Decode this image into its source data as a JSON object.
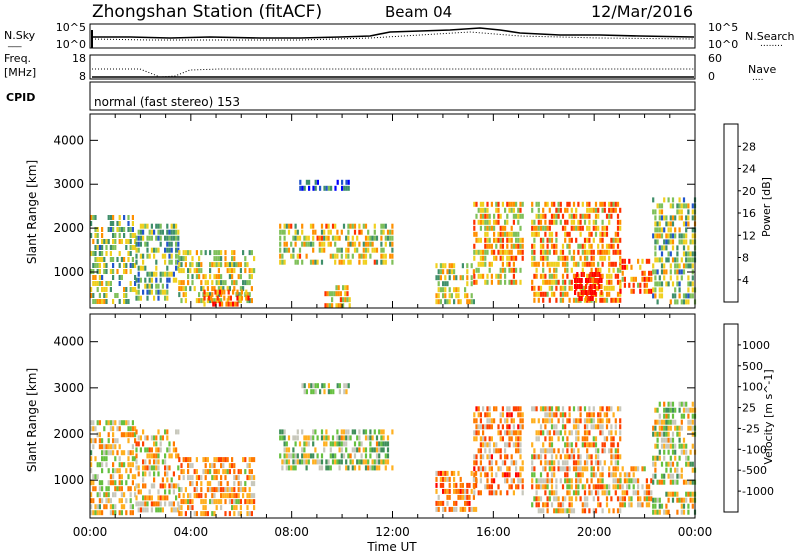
{
  "header": {
    "station": "Zhongshan Station (fitACF)",
    "beam": "Beam 04",
    "date": "12/Mar/2016"
  },
  "summary": {
    "nsky_label": "N.Sky",
    "nsearch_label": "N.Search",
    "freq_label_1": "Freq.",
    "freq_label_2": "[MHz]",
    "nave_label": "Nave",
    "cpid_label": "CPID",
    "cpid_text": "normal (fast stereo) 153",
    "count_ticks": [
      "10^5",
      "10^0"
    ],
    "freq_ticks": [
      "18",
      "8"
    ],
    "nave_ticks": [
      "60",
      "0"
    ],
    "nsky_dashes": "___",
    "nsearch_dots": "........",
    "nave_dots": "...."
  },
  "chart_data": [
    {
      "type": "heatmap",
      "panel": "power",
      "ylabel": "Slant Range [km]",
      "xlabel": "",
      "yticks": [
        1000,
        2000,
        3000,
        4000
      ],
      "ylim": [
        180,
        4600
      ],
      "xlim": [
        0,
        24
      ],
      "colorbar": {
        "label": "Power [dB]",
        "ticks": [
          "4",
          "8",
          "12",
          "16",
          "20",
          "24",
          "28"
        ],
        "colors": [
          "#0000ff",
          "#2255cc",
          "#3f8f6a",
          "#7fc05a",
          "#f0d020",
          "#ff9000",
          "#ff3000",
          "#ff0000"
        ]
      },
      "regions": [
        {
          "t0": 0.0,
          "t1": 1.8,
          "r0": 300,
          "r1": 2300,
          "level": 0.45
        },
        {
          "t0": 1.8,
          "t1": 3.5,
          "r0": 400,
          "r1": 2100,
          "level": 0.4
        },
        {
          "t0": 3.5,
          "t1": 6.5,
          "r0": 300,
          "r1": 1500,
          "level": 0.5
        },
        {
          "t0": 4.5,
          "t1": 6.5,
          "r0": 250,
          "r1": 600,
          "level": 0.8
        },
        {
          "t0": 7.5,
          "t1": 12.0,
          "r0": 1200,
          "r1": 2100,
          "level": 0.55
        },
        {
          "t0": 8.3,
          "t1": 10.3,
          "r0": 2850,
          "r1": 3100,
          "level": 0.2
        },
        {
          "t0": 9.3,
          "t1": 10.3,
          "r0": 250,
          "r1": 700,
          "level": 0.6
        },
        {
          "t0": 13.7,
          "t1": 15.3,
          "r0": 350,
          "r1": 1200,
          "level": 0.5
        },
        {
          "t0": 15.2,
          "t1": 17.2,
          "r0": 700,
          "r1": 2600,
          "level": 0.6
        },
        {
          "t0": 17.5,
          "t1": 21.0,
          "r0": 300,
          "r1": 2600,
          "level": 0.65
        },
        {
          "t0": 19.2,
          "t1": 20.3,
          "r0": 400,
          "r1": 1000,
          "level": 0.95
        },
        {
          "t0": 21.0,
          "t1": 22.3,
          "r0": 500,
          "r1": 1300,
          "level": 0.7
        },
        {
          "t0": 22.3,
          "t1": 24.0,
          "r0": 300,
          "r1": 2700,
          "level": 0.45
        }
      ]
    },
    {
      "type": "heatmap",
      "panel": "velocity",
      "ylabel": "Slant Range [km]",
      "xlabel": "Time UT",
      "xticks": [
        "00:00",
        "04:00",
        "08:00",
        "12:00",
        "16:00",
        "20:00",
        "00:00"
      ],
      "yticks": [
        1000,
        2000,
        3000,
        4000
      ],
      "ylim": [
        180,
        4600
      ],
      "xlim": [
        0,
        24
      ],
      "colorbar": {
        "label": "Velocity [m s^-1]",
        "ticks": [
          "1000",
          "500",
          "100",
          "25",
          "-25",
          "-100",
          "-500",
          "-1000"
        ],
        "colors": [
          "#1a3fa8",
          "#2a6fb0",
          "#3f8f5a",
          "#66c040",
          "#c8c8bc",
          "#ffb020",
          "#ff7a00",
          "#ff4000",
          "#ff0000"
        ]
      },
      "regions": [
        {
          "t0": 0.0,
          "t1": 1.8,
          "r0": 300,
          "r1": 2300,
          "level": 0.55
        },
        {
          "t0": 1.8,
          "t1": 3.5,
          "r0": 400,
          "r1": 2100,
          "level": 0.6
        },
        {
          "t0": 3.5,
          "t1": 6.5,
          "r0": 300,
          "r1": 1500,
          "level": 0.65
        },
        {
          "t0": 7.5,
          "t1": 12.0,
          "r0": 1200,
          "r1": 2100,
          "level": 0.45
        },
        {
          "t0": 8.3,
          "t1": 10.3,
          "r0": 2850,
          "r1": 3100,
          "level": 0.45
        },
        {
          "t0": 13.7,
          "t1": 15.3,
          "r0": 350,
          "r1": 1200,
          "level": 0.7
        },
        {
          "t0": 15.2,
          "t1": 17.2,
          "r0": 700,
          "r1": 2600,
          "level": 0.68
        },
        {
          "t0": 17.5,
          "t1": 21.0,
          "r0": 300,
          "r1": 2600,
          "level": 0.62
        },
        {
          "t0": 21.0,
          "t1": 22.3,
          "r0": 500,
          "r1": 1300,
          "level": 0.6
        },
        {
          "t0": 22.3,
          "t1": 24.0,
          "r0": 300,
          "r1": 2700,
          "level": 0.5
        }
      ]
    }
  ]
}
